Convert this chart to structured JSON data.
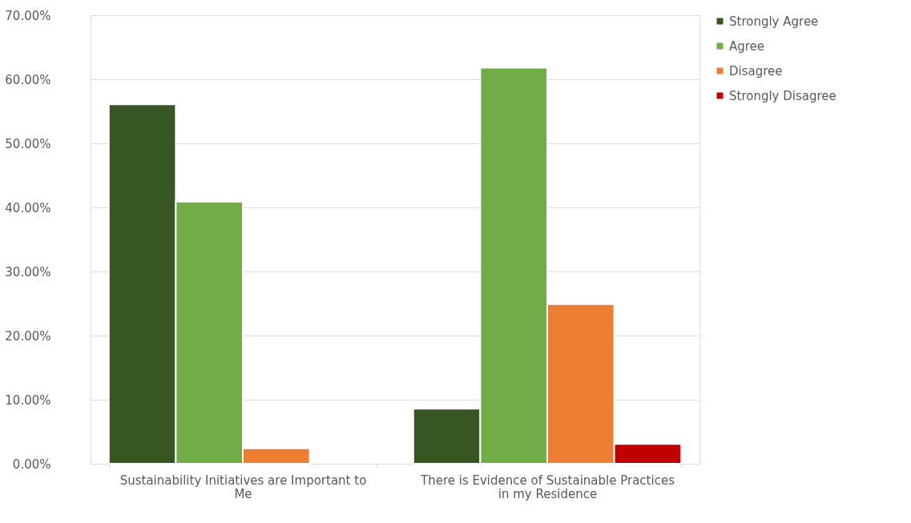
{
  "chart_data": {
    "type": "bar",
    "categories": [
      "Sustainability Initiatives are Important to Me",
      "There is Evidence of Sustainable Practices in my Residence"
    ],
    "series": [
      {
        "name": "Strongly Agree",
        "color": "#375623",
        "values": [
          56.1,
          8.6
        ]
      },
      {
        "name": "Agree",
        "color": "#70ad47",
        "values": [
          40.9,
          61.8
        ]
      },
      {
        "name": "Disagree",
        "color": "#ed7d31",
        "values": [
          2.4,
          24.9
        ]
      },
      {
        "name": "Strongly Disagree",
        "color": "#c00000",
        "values": [
          null,
          3.1
        ]
      }
    ],
    "ylim": [
      0,
      70
    ],
    "yticks": [
      {
        "value": 0,
        "label": "0.00%"
      },
      {
        "value": 10,
        "label": "10.00%"
      },
      {
        "value": 20,
        "label": "20.00%"
      },
      {
        "value": 30,
        "label": "30.00%"
      },
      {
        "value": 40,
        "label": "40.00%"
      },
      {
        "value": 50,
        "label": "50.00%"
      },
      {
        "value": 60,
        "label": "60.00%"
      },
      {
        "value": 70,
        "label": "70.00%"
      }
    ],
    "grid": "y",
    "legend": "right"
  }
}
